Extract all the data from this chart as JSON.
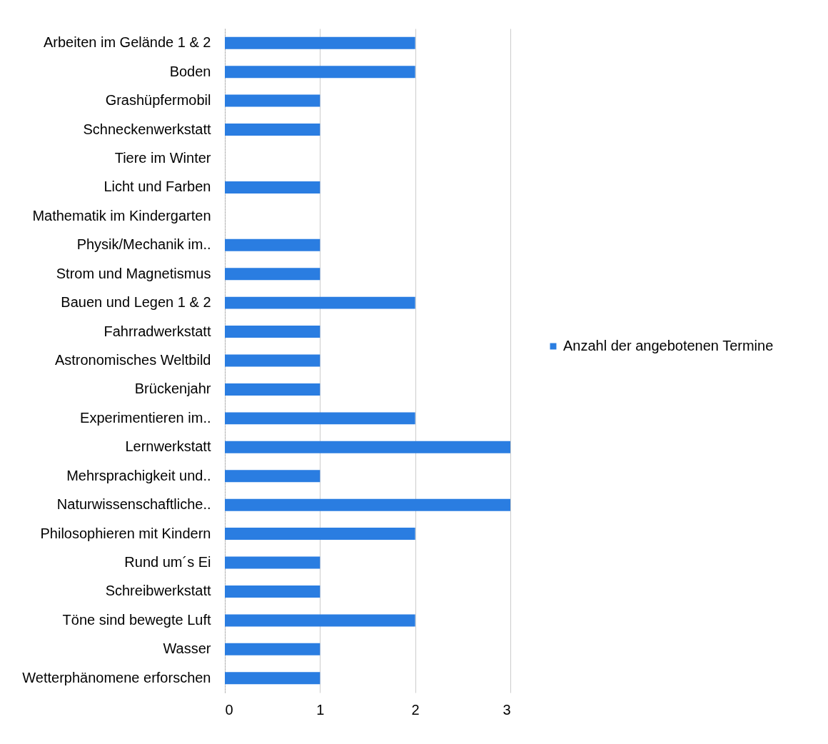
{
  "chart_data": {
    "type": "bar",
    "orientation": "horizontal",
    "categories": [
      "Arbeiten im Gelände 1 & 2",
      "Boden",
      "Grashüpfermobil",
      "Schneckenwerkstatt",
      "Tiere im Winter",
      "Licht und Farben",
      "Mathematik im Kindergarten",
      "Physik/Mechanik im..",
      "Strom und Magnetismus",
      "Bauen und Legen 1 & 2",
      "Fahrradwerkstatt",
      "Astronomisches Weltbild",
      "Brückenjahr",
      "Experimentieren im..",
      "Lernwerkstatt",
      "Mehrsprachigkeit und..",
      "Naturwissenschaftliche..",
      "Philosophieren mit Kindern",
      "Rund um´s Ei",
      "Schreibwerkstatt",
      "Töne sind bewegte Luft",
      "Wasser",
      "Wetterphänomene erforschen"
    ],
    "series": [
      {
        "name": "Anzahl der angebotenen Termine",
        "color": "#2a7de1",
        "values": [
          2,
          2,
          1,
          1,
          0,
          1,
          0,
          1,
          1,
          2,
          1,
          1,
          1,
          2,
          3,
          1,
          3,
          2,
          1,
          1,
          2,
          1,
          1
        ]
      }
    ],
    "xlim": [
      0,
      3
    ],
    "xticks": [
      0,
      1,
      2,
      3
    ],
    "grid": "x",
    "legend": "right"
  }
}
